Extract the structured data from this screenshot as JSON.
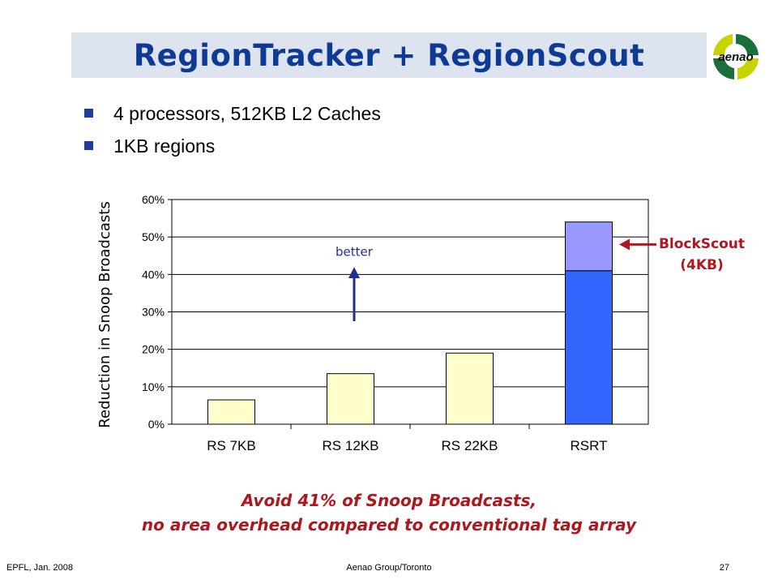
{
  "slide": {
    "title": "RegionTracker + RegionScout",
    "bullets": [
      "4 processors, 512KB L2 Caches",
      "1KB regions"
    ],
    "logo_text": "aenao",
    "takeaway_line1": "Avoid 41% of Snoop Broadcasts,",
    "takeaway_line2": "no area overhead compared to conventional tag array",
    "footer": {
      "left": "EPFL, Jan. 2008",
      "center": "Aenao Group/Toronto",
      "right": "27"
    }
  },
  "annotations": {
    "better": "better",
    "callout_line1": "BlockScout",
    "callout_line2": "(4KB)"
  },
  "chart_data": {
    "type": "bar",
    "stacked": true,
    "ylabel": "Reduction in Snoop Broadcasts",
    "categories": [
      "RS 7KB",
      "RS 12KB",
      "RS 22KB",
      "RSRT"
    ],
    "series": [
      {
        "values": [
          6.5,
          13.5,
          19,
          41
        ],
        "color": "#ffffcc",
        "highlight_color": "#3366ff"
      },
      {
        "values": [
          0,
          0,
          0,
          13
        ],
        "color": "#9999ff"
      }
    ],
    "ylim": [
      0,
      60
    ],
    "yticks": [
      0,
      10,
      20,
      30,
      40,
      50,
      60
    ],
    "ytick_labels": [
      "0%",
      "10%",
      "20%",
      "30%",
      "40%",
      "50%",
      "60%"
    ],
    "grid": true
  },
  "colors": {
    "title": "#0f3a94",
    "title_background": "#dde3ef",
    "accent_red": "#b0161c",
    "arrow_blue": "#1f2f8f",
    "bullet": "#1f3f9a"
  }
}
